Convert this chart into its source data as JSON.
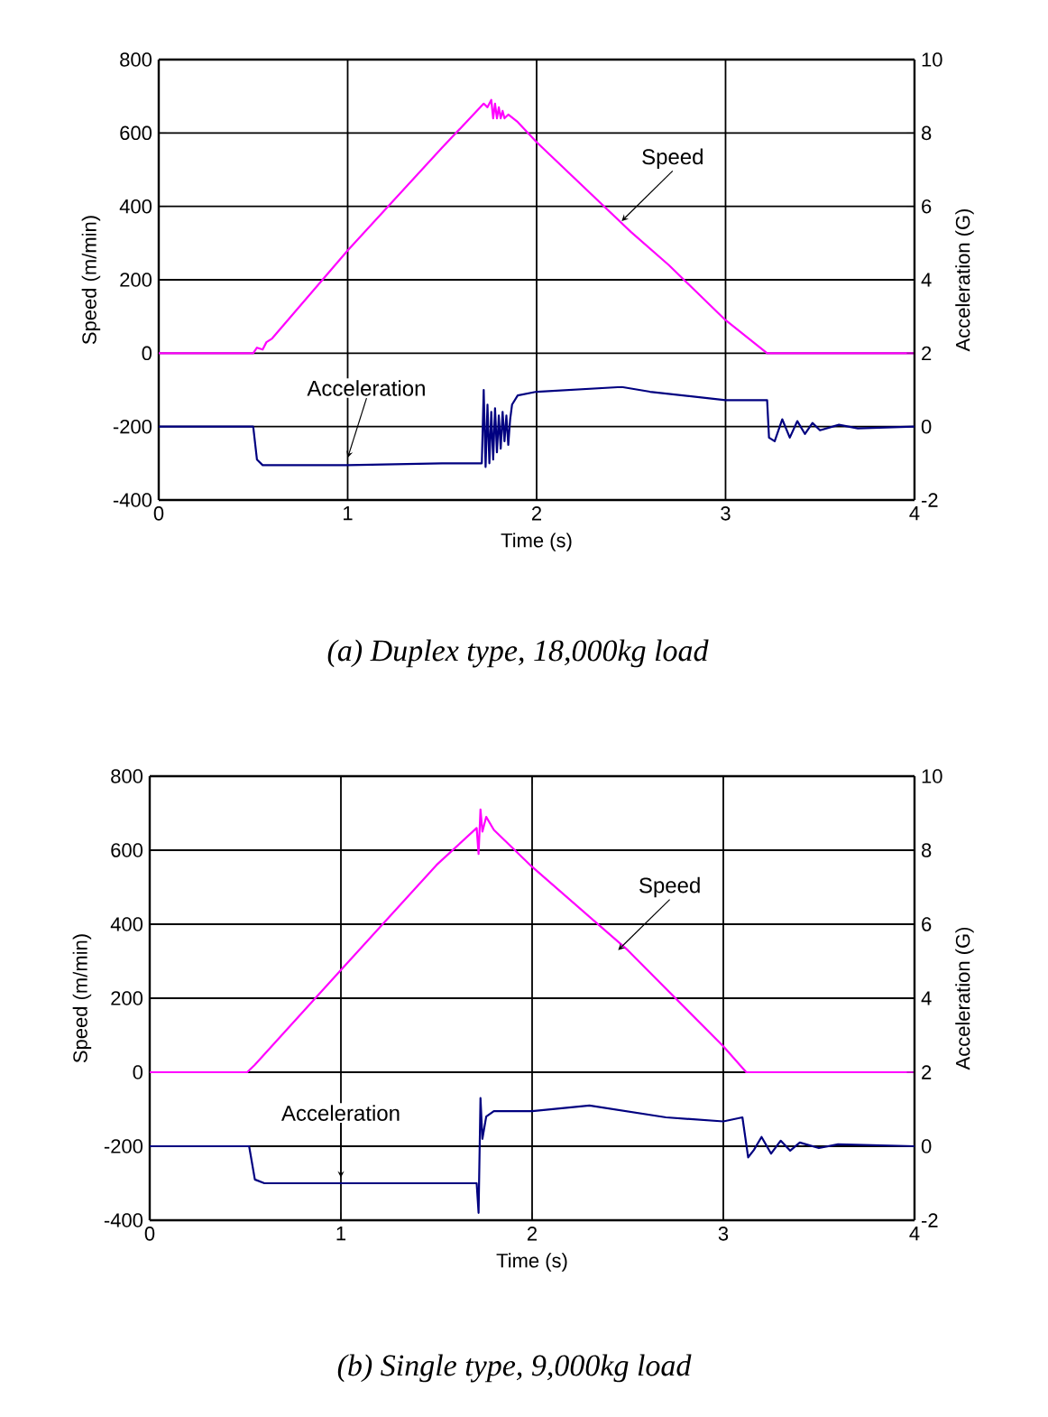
{
  "chart_data": [
    {
      "type": "line",
      "xlabel": "Time (s)",
      "ylabel": "Speed (m/min)",
      "y2label": "Acceleration (G)",
      "grid": true,
      "xlim": [
        0,
        4
      ],
      "xticks": [
        0,
        1,
        2,
        3,
        4
      ],
      "ylim": [
        -400,
        800
      ],
      "yticks": [
        -400,
        -200,
        0,
        200,
        400,
        600,
        800
      ],
      "y2lim": [
        -2,
        10
      ],
      "y2ticks": [
        -2,
        0,
        2,
        4,
        6,
        8,
        10
      ],
      "series": [
        {
          "name": "Speed",
          "color": "#ff00ff",
          "x": [
            0,
            0.5,
            0.52,
            0.55,
            0.57,
            0.6,
            1.0,
            1.5,
            1.72,
            1.74,
            1.76,
            1.77,
            1.78,
            1.79,
            1.8,
            1.81,
            1.82,
            1.83,
            1.85,
            1.9,
            2.0,
            2.5,
            2.7,
            3.0,
            3.22,
            4.0
          ],
          "values": [
            0,
            0,
            15,
            10,
            30,
            40,
            280,
            560,
            680,
            670,
            690,
            640,
            680,
            640,
            670,
            640,
            660,
            640,
            650,
            630,
            575,
            330,
            240,
            90,
            0,
            0
          ]
        },
        {
          "name": "Acceleration",
          "color": "#000080",
          "axis": "y2",
          "x": [
            0,
            0.5,
            0.52,
            0.55,
            1.0,
            1.5,
            1.71,
            1.72,
            1.73,
            1.74,
            1.75,
            1.76,
            1.77,
            1.78,
            1.79,
            1.8,
            1.81,
            1.82,
            1.83,
            1.84,
            1.85,
            1.86,
            1.87,
            1.9,
            2.0,
            2.45,
            2.6,
            3.0,
            3.22,
            3.23,
            3.26,
            3.3,
            3.34,
            3.38,
            3.42,
            3.46,
            3.5,
            3.6,
            3.7,
            4.0
          ],
          "values": [
            0,
            0,
            -0.9,
            -1.05,
            -1.05,
            -1.0,
            -1.0,
            1.0,
            -1.1,
            0.6,
            -1.0,
            0.4,
            -0.9,
            0.5,
            -0.7,
            0.3,
            -0.6,
            0.4,
            -0.4,
            0.3,
            -0.5,
            0.2,
            0.6,
            0.85,
            0.95,
            1.08,
            0.95,
            0.72,
            0.72,
            -0.3,
            -0.4,
            0.2,
            -0.3,
            0.15,
            -0.2,
            0.1,
            -0.1,
            0.05,
            -0.05,
            0
          ]
        }
      ],
      "annotations": [
        "(a) Duplex type, 18,000kg load"
      ]
    },
    {
      "type": "line",
      "xlabel": "Time (s)",
      "ylabel": "Speed (m/min)",
      "y2label": "Acceleration (G)",
      "grid": true,
      "xlim": [
        0,
        4
      ],
      "xticks": [
        0,
        1,
        2,
        3,
        4
      ],
      "ylim": [
        -400,
        800
      ],
      "yticks": [
        -400,
        -200,
        0,
        200,
        400,
        600,
        800
      ],
      "y2lim": [
        -2,
        10
      ],
      "y2ticks": [
        -2,
        0,
        2,
        4,
        6,
        8,
        10
      ],
      "series": [
        {
          "name": "Speed",
          "color": "#ff00ff",
          "x": [
            0,
            0.51,
            0.55,
            1.0,
            1.5,
            1.71,
            1.72,
            1.73,
            1.74,
            1.76,
            1.8,
            2.0,
            2.5,
            3.0,
            3.12,
            4.0
          ],
          "values": [
            0,
            0,
            20,
            276,
            560,
            660,
            590,
            710,
            650,
            690,
            655,
            555,
            330,
            70,
            0,
            0
          ]
        },
        {
          "name": "Acceleration",
          "color": "#000080",
          "axis": "y2",
          "x": [
            0,
            0.52,
            0.55,
            0.6,
            1.0,
            1.71,
            1.72,
            1.73,
            1.74,
            1.76,
            1.8,
            2.0,
            2.3,
            2.7,
            3.0,
            3.1,
            3.13,
            3.16,
            3.2,
            3.25,
            3.3,
            3.35,
            3.4,
            3.5,
            3.6,
            4.0
          ],
          "values": [
            0,
            0,
            -0.9,
            -1.0,
            -1.0,
            -1.0,
            -1.8,
            1.3,
            0.2,
            0.8,
            0.95,
            0.95,
            1.1,
            0.78,
            0.67,
            0.78,
            -0.3,
            -0.1,
            0.25,
            -0.2,
            0.15,
            -0.12,
            0.1,
            -0.05,
            0.05,
            0
          ]
        }
      ],
      "annotations": [
        "(b) Single type, 9,000kg load"
      ]
    }
  ]
}
